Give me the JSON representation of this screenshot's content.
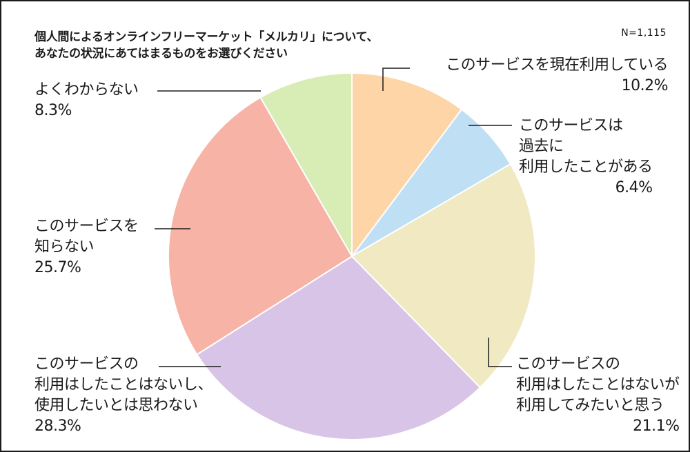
{
  "header": {
    "title_line1": "個人間によるオンラインフリーマーケット「メルカリ」について、",
    "title_line2": "あなたの状況にあてはまるものをお選びください",
    "sample_size": "N=1,115"
  },
  "colors": {
    "current": "#fdd5a6",
    "past": "#bfdff5",
    "want": "#f0e9c2",
    "no_interest": "#d7c4e6",
    "unaware": "#f7b3a6",
    "unknown": "#d8ecb5",
    "leader": "#1a1a1a"
  },
  "chart_data": {
    "type": "pie",
    "title": "個人間によるオンラインフリーマーケット「メルカリ」について、あなたの状況にあてはまるものをお選びください",
    "note": "N=1,115",
    "start_angle_deg": 0,
    "direction": "clockwise",
    "slices": [
      {
        "key": "current",
        "label_lines": [
          "このサービスを現在利用している"
        ],
        "value": 10.2,
        "value_label": "10.2%",
        "color": "#fdd5a6"
      },
      {
        "key": "past",
        "label_lines": [
          "このサービスは",
          "過去に",
          "利用したことがある"
        ],
        "value": 6.4,
        "value_label": "6.4%",
        "color": "#bfdff5"
      },
      {
        "key": "want",
        "label_lines": [
          "このサービスの",
          "利用はしたことはないが",
          "利用してみたいと思う"
        ],
        "value": 21.1,
        "value_label": "21.1%",
        "color": "#f0e9c2"
      },
      {
        "key": "no_interest",
        "label_lines": [
          "このサービスの",
          "利用はしたことはないし、",
          "使用したいとは思わない"
        ],
        "value": 28.3,
        "value_label": "28.3%",
        "color": "#d7c4e6"
      },
      {
        "key": "unaware",
        "label_lines": [
          "このサービスを",
          "知らない"
        ],
        "value": 25.7,
        "value_label": "25.7%",
        "color": "#f7b3a6"
      },
      {
        "key": "unknown",
        "label_lines": [
          "よくわからない"
        ],
        "value": 8.3,
        "value_label": "8.3%",
        "color": "#d8ecb5"
      }
    ]
  }
}
